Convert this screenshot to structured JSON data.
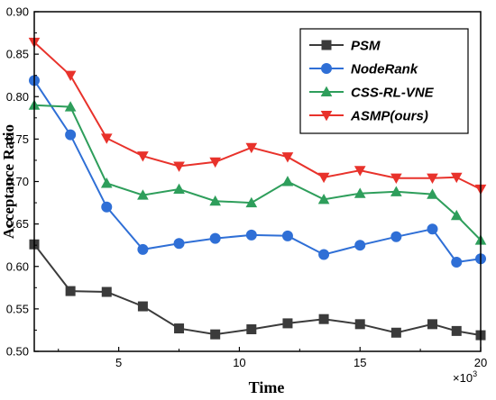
{
  "chart_data": {
    "type": "line",
    "title": "",
    "xlabel": "Time",
    "ylabel": "Acceptance Ratio",
    "x_exponent_label": "×10",
    "x_exponent_power": "3",
    "xlim": [
      1.5,
      20
    ],
    "ylim": [
      0.5,
      0.9
    ],
    "xticks": [
      5,
      10,
      15,
      20
    ],
    "yticks": [
      0.5,
      0.55,
      0.6,
      0.65,
      0.7,
      0.75,
      0.8,
      0.85,
      0.9
    ],
    "ytick_labels": [
      "0.50",
      "0.55",
      "0.60",
      "0.65",
      "0.70",
      "0.75",
      "0.80",
      "0.85",
      "0.90"
    ],
    "xtick_labels": [
      "5",
      "10",
      "15",
      "20"
    ],
    "grid": false,
    "legend_position": "top-right",
    "x": [
      1.5,
      3.0,
      4.5,
      6.0,
      7.5,
      9.0,
      10.5,
      12.0,
      13.5,
      15.0,
      16.5,
      18.0,
      19.0,
      20.0
    ],
    "series": [
      {
        "name": "PSM",
        "color": "#3b3b3b",
        "marker": "square",
        "values": [
          0.626,
          0.571,
          0.57,
          0.553,
          0.527,
          0.52,
          0.526,
          0.533,
          0.538,
          0.532,
          0.522,
          0.532,
          0.524,
          0.519
        ]
      },
      {
        "name": "NodeRank",
        "color": "#2f6fd6",
        "marker": "circle",
        "values": [
          0.819,
          0.755,
          0.67,
          0.62,
          0.627,
          0.633,
          0.637,
          0.636,
          0.614,
          0.625,
          0.635,
          0.644,
          0.605,
          0.609
        ]
      },
      {
        "name": "CSS-RL-VNE",
        "color": "#2e9e5b",
        "marker": "triangle-up",
        "values": [
          0.79,
          0.788,
          0.698,
          0.684,
          0.691,
          0.677,
          0.675,
          0.7,
          0.679,
          0.686,
          0.688,
          0.685,
          0.66,
          0.631
        ]
      },
      {
        "name": "ASMP(ours)",
        "color": "#e8322b",
        "marker": "triangle-down",
        "values": [
          0.864,
          0.825,
          0.751,
          0.73,
          0.718,
          0.723,
          0.74,
          0.729,
          0.705,
          0.713,
          0.704,
          0.704,
          0.705,
          0.691
        ]
      }
    ]
  }
}
